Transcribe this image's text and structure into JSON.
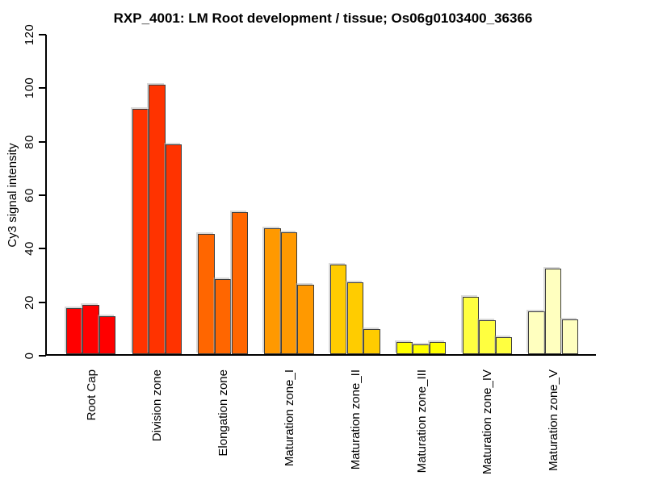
{
  "chart_data": {
    "type": "bar",
    "title": "RXP_4001: LM Root development / tissue; Os06g0103400_36366",
    "xlabel": "",
    "ylabel": "Cy3 signal intensity",
    "ylim": [
      0,
      120
    ],
    "yticks": [
      0,
      20,
      40,
      60,
      80,
      100,
      120
    ],
    "grid": false,
    "legend": "none",
    "bars_per_group": 3,
    "axis_color": "#000000",
    "bar_border_color": "#3c3c3c",
    "categories": [
      "Root Cap",
      "Division zone",
      "Elongation zone",
      "Maturation zone_I",
      "Maturation zone_II",
      "Maturation zone_III",
      "Maturation zone_IV",
      "Maturation zone_V"
    ],
    "groups": [
      {
        "label": "Root Cap",
        "color": "#FF0000",
        "values": [
          17.2,
          18.5,
          14.1
        ]
      },
      {
        "label": "Division zone",
        "color": "#FF3300",
        "values": [
          91.7,
          100.6,
          78.5
        ]
      },
      {
        "label": "Elongation zone",
        "color": "#FF6600",
        "values": [
          44.9,
          28.1,
          53.1
        ]
      },
      {
        "label": "Maturation zone_I",
        "color": "#FF9900",
        "values": [
          47.0,
          45.6,
          26.0
        ]
      },
      {
        "label": "Maturation zone_II",
        "color": "#FFCC00",
        "values": [
          33.5,
          26.9,
          9.3
        ]
      },
      {
        "label": "Maturation zone_III",
        "color": "#FFFF00",
        "values": [
          4.6,
          3.7,
          4.6
        ]
      },
      {
        "label": "Maturation zone_IV",
        "color": "#FFFF40",
        "values": [
          21.5,
          12.6,
          6.3
        ]
      },
      {
        "label": "Maturation zone_V",
        "color": "#FFFFBF",
        "values": [
          16.1,
          32.0,
          13.1
        ]
      }
    ]
  }
}
